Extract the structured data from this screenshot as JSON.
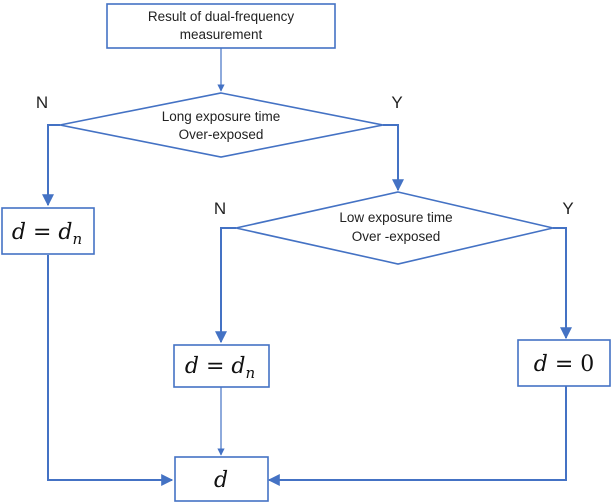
{
  "nodes": {
    "start": {
      "line1": "Result of dual-frequency",
      "line2": "measurement"
    },
    "decision_long": {
      "line1": "Long exposure time",
      "line2": "Over-exposed"
    },
    "decision_low": {
      "line1": "Low exposure time",
      "line2": "Over -exposed"
    },
    "result_left": {
      "var": "d",
      "eq": " = ",
      "rhs": "d",
      "sub": "n"
    },
    "result_mid": {
      "var": "d",
      "eq": " = ",
      "rhs": "d",
      "sub": "n"
    },
    "result_zero": {
      "var": "d",
      "eq": " = ",
      "rhs": "0"
    },
    "output": {
      "var": "d"
    }
  },
  "branches": {
    "long_no": "N",
    "long_yes": "Y",
    "low_no": "N",
    "low_yes": "Y"
  },
  "colors": {
    "stroke": "#4472C4",
    "text": "#222222"
  }
}
